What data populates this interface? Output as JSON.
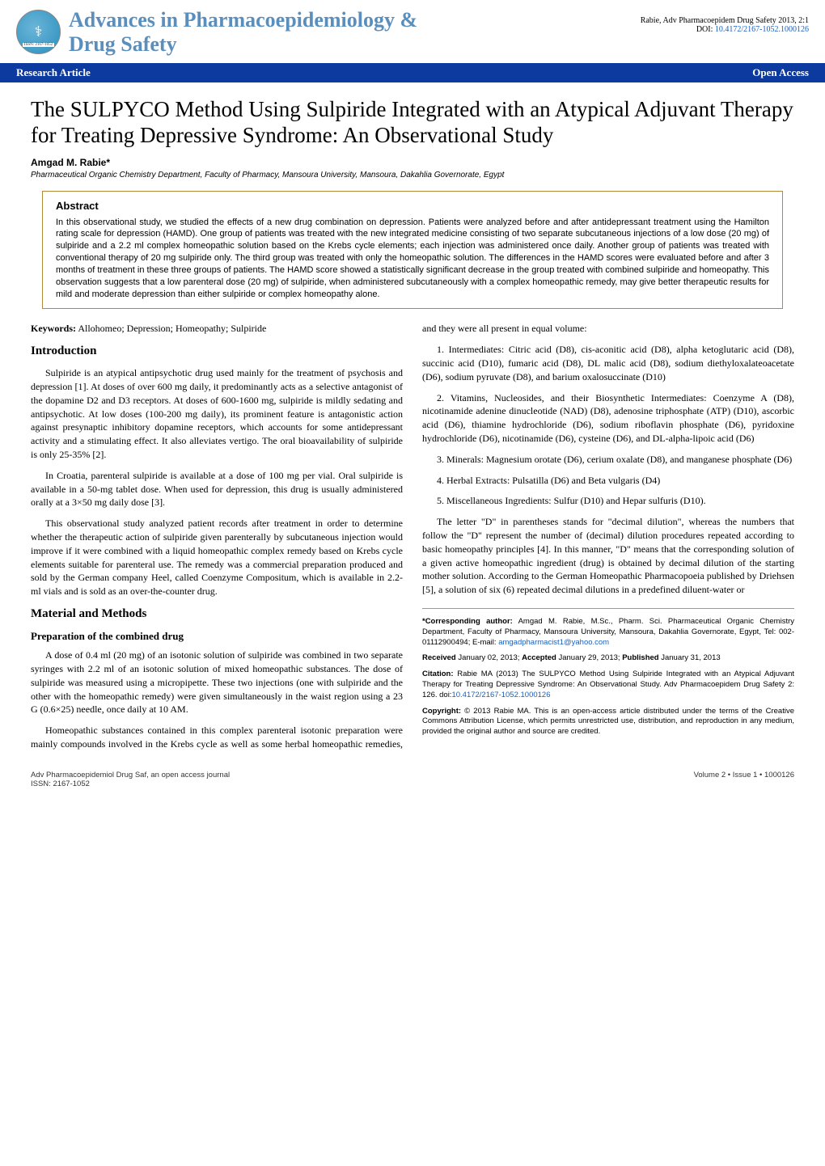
{
  "header": {
    "logo_issn": "ISSN: 2167-1052",
    "journal_title_line1": "Advances in Pharmacoepidemiology &",
    "journal_title_line2": "Drug Safety",
    "citation_short": "Rabie, Adv Pharmacoepidem Drug Safety 2013, 2:1",
    "doi_label": "DOI: ",
    "doi": "10.4172/2167-1052.1000126",
    "section_left": "Research Article",
    "section_right": "Open Access"
  },
  "article": {
    "title": "The SULPYCO Method Using Sulpiride Integrated with an Atypical Adjuvant Therapy for Treating Depressive Syndrome: An Observational Study",
    "author": "Amgad M. Rabie*",
    "affiliation": "Pharmaceutical Organic Chemistry Department, Faculty of Pharmacy, Mansoura University, Mansoura, Dakahlia Governorate, Egypt"
  },
  "abstract": {
    "heading": "Abstract",
    "text": "In this observational study, we studied the effects of a new drug combination on depression. Patients were analyzed before and after antidepressant treatment using the Hamilton rating scale for depression (HAMD). One group of patients was treated with the new integrated medicine consisting of two separate subcutaneous injections of a low dose (20 mg) of sulpiride and a 2.2 ml complex homeopathic solution based on the Krebs cycle elements; each injection was administered once daily. Another group of patients was treated with conventional therapy of 20 mg sulpiride only. The third group was treated with only the homeopathic solution. The differences in the HAMD scores were evaluated before and after 3 months of treatment in these three groups of patients. The HAMD score showed a statistically significant decrease in the group treated with combined sulpiride and homeopathy. This observation suggests that a low parenteral dose (20 mg) of sulpiride, when administered subcutaneously with a complex homeopathic remedy, may give better therapeutic results for mild and moderate depression than either sulpiride or complex homeopathy alone."
  },
  "keywords": {
    "label": "Keywords:",
    "text": "Allohomeo; Depression; Homeopathy; Sulpiride"
  },
  "sections": {
    "intro_head": "Introduction",
    "intro_p1": "Sulpiride is an atypical antipsychotic drug used mainly for the treatment of psychosis and depression [1]. At doses of over 600 mg daily, it predominantly acts as a selective antagonist of the dopamine D2 and D3 receptors. At doses of 600-1600 mg, sulpiride is mildly sedating and antipsychotic. At low doses (100-200 mg daily), its prominent feature is antagonistic action against presynaptic inhibitory dopamine receptors, which accounts for some antidepressant activity and a stimulating effect. It also alleviates vertigo. The oral bioavailability of sulpiride is only 25-35% [2].",
    "intro_p2": "In Croatia, parenteral sulpiride is available at a dose of 100 mg per vial. Oral sulpiride is available in a 50-mg tablet dose. When used for depression, this drug is usually administered orally at a 3×50 mg daily dose [3].",
    "intro_p3": "This observational study analyzed patient records after treatment in order to determine whether the therapeutic action of sulpiride given parenterally by subcutaneous injection would improve if it were combined with a liquid homeopathic complex remedy based on Krebs cycle elements suitable for parenteral use. The remedy was a commercial preparation produced and sold by the German company Heel, called Coenzyme Compositum, which is available in 2.2-ml vials and is sold as an over-the-counter drug.",
    "mm_head": "Material and Methods",
    "prep_head": "Preparation of the combined drug",
    "prep_p1": "A dose of 0.4 ml (20 mg) of an isotonic solution of sulpiride was combined in two separate syringes with 2.2 ml of an isotonic solution of mixed homeopathic substances. The dose of sulpiride was measured using a micropipette. These two injections (one with sulpiride and the other with the homeopathic remedy) were given simultaneously in the waist region using a 23 G (0.6×25) needle, once daily at 10 AM.",
    "prep_p2": "Homeopathic substances contained in this complex parenteral isotonic preparation were mainly compounds involved in the Krebs cycle as well as some herbal homeopathic remedies, and they were all present in equal volume:",
    "item1": "1. Intermediates: Citric acid (D8), cis-aconitic acid (D8), alpha ketoglutaric acid (D8), succinic acid (D10), fumaric acid (D8), DL malic acid (D8), sodium diethyloxalateoacetate (D6), sodium pyruvate (D8), and barium oxalosuccinate (D10)",
    "item2": "2. Vitamins, Nucleosides, and their Biosynthetic Intermediates: Coenzyme A (D8), nicotinamide adenine dinucleotide (NAD) (D8), adenosine triphosphate (ATP) (D10), ascorbic acid (D6), thiamine hydrochloride (D6), sodium riboflavin phosphate (D6), pyridoxine hydrochloride (D6), nicotinamide (D6), cysteine (D6), and DL-alpha-lipoic acid (D6)",
    "item3": "3. Minerals: Magnesium orotate (D6), cerium oxalate (D8), and manganese phosphate (D6)",
    "item4": "4. Herbal Extracts: Pulsatilla (D6) and Beta vulgaris (D4)",
    "item5": "5. Miscellaneous Ingredients: Sulfur (D10) and Hepar sulfuris (D10).",
    "dilution_p1": "The letter \"D\" in parentheses stands for \"decimal dilution\", whereas the numbers that follow the \"D\" represent the number of (decimal) dilution procedures repeated according to basic homeopathy principles [4]. In this manner, \"D\" means that the corresponding solution of a given active homeopathic ingredient (drug) is obtained by decimal dilution of the starting mother solution. According to the German Homeopathic Pharmacopoeia published by Driehsen [5], a solution of six (6) repeated decimal dilutions in a predefined diluent-water or"
  },
  "info": {
    "corresponding_label": "*Corresponding author:",
    "corresponding_text": " Amgad M. Rabie, M.Sc., Pharm. Sci. Pharmaceutical Organic Chemistry Department, Faculty of Pharmacy, Mansoura University, Mansoura, Dakahlia Governorate, Egypt, Tel: 002-01112900494; E-mail: ",
    "corresponding_email": "amgadpharmacist1@yahoo.com",
    "received_label": "Received",
    "received_date": " January 02, 2013; ",
    "accepted_label": "Accepted",
    "accepted_date": " January 29, 2013; ",
    "published_label": "Published",
    "published_date": " January 31, 2013",
    "citation_label": "Citation:",
    "citation_text": " Rabie MA (2013) The SULPYCO Method Using Sulpiride Integrated with an Atypical Adjuvant Therapy for Treating Depressive Syndrome: An Observational Study. Adv Pharmacoepidem Drug Safety 2: 126. doi:",
    "citation_doi": "10.4172/2167-1052.1000126",
    "copyright_label": "Copyright:",
    "copyright_text": " © 2013 Rabie MA. This is an open-access article distributed under the terms of the Creative Commons Attribution License, which permits unrestricted use, distribution, and reproduction in any medium, provided the original author and source are credited."
  },
  "footer": {
    "left_line1": "Adv Pharmacoepidemiol Drug Saf, an open access journal",
    "left_line2": "ISSN: 2167-1052",
    "right": "Volume 2 • Issue 1 • 1000126"
  },
  "colors": {
    "journal_title": "#5a8fbd",
    "section_bar_bg": "#0d3a9e",
    "abstract_border": "#b08a3a",
    "link": "#1a5fbd"
  }
}
